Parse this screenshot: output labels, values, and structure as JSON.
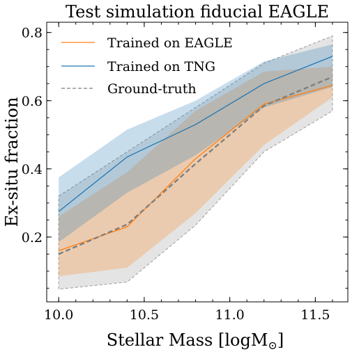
{
  "chart_data": {
    "type": "line",
    "title": "Test simulation fiducial EAGLE",
    "xlabel": "Stellar Mass [logM",
    "xlabel_sub": "⊙",
    "xlabel_close": "]",
    "ylabel": "Ex-situ fraction",
    "xlim": [
      9.93,
      11.69
    ],
    "ylim": [
      0.01,
      0.83
    ],
    "xticks": [
      10.0,
      10.5,
      11.0,
      11.5
    ],
    "xtick_labels": [
      "10.0",
      "10.5",
      "11.0",
      "11.5"
    ],
    "yticks": [
      0.2,
      0.4,
      0.6,
      0.8
    ],
    "ytick_labels": [
      "0.2",
      "0.4",
      "0.6",
      "0.8"
    ],
    "legend_position": "top-left",
    "x": [
      10.0,
      10.4,
      10.8,
      11.2,
      11.6
    ],
    "series": [
      {
        "name": "Trained on EAGLE",
        "color": "#ff7f0e",
        "style": "solid",
        "values": [
          0.16,
          0.23,
          0.43,
          0.59,
          0.645
        ],
        "lower": [
          0.085,
          0.11,
          0.27,
          0.47,
          0.61
        ],
        "upper": [
          0.26,
          0.39,
          0.57,
          0.685,
          0.7
        ]
      },
      {
        "name": "Trained on TNG",
        "color": "#1f77b4",
        "style": "solid",
        "values": [
          0.275,
          0.435,
          0.53,
          0.65,
          0.73
        ],
        "lower": [
          0.185,
          0.33,
          0.44,
          0.58,
          0.64
        ],
        "upper": [
          0.375,
          0.515,
          0.6,
          0.715,
          0.765
        ]
      },
      {
        "name": "Ground-truth",
        "color": "#7f7f7f",
        "style": "dashed",
        "values": [
          0.15,
          0.237,
          0.415,
          0.585,
          0.67
        ],
        "lower": [
          0.047,
          0.068,
          0.235,
          0.45,
          0.57
        ],
        "upper": [
          0.32,
          0.45,
          0.58,
          0.71,
          0.79
        ]
      }
    ]
  }
}
